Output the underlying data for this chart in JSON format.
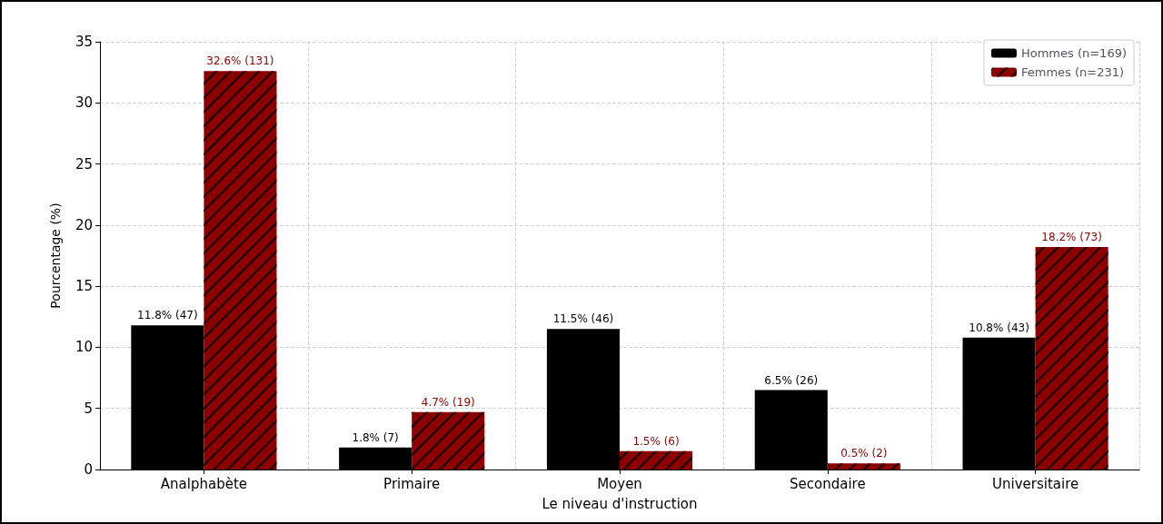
{
  "chart_data": {
    "type": "bar",
    "xlabel": "Le niveau d'instruction",
    "ylabel": "Pourcentage (%)",
    "categories": [
      "Analphabète",
      "Primaire",
      "Moyen",
      "Secondaire",
      "Universitaire"
    ],
    "series": [
      {
        "name": "Hommes (n=169)",
        "color": "#000000",
        "values": [
          11.8,
          1.8,
          11.5,
          6.5,
          10.8
        ],
        "value_labels": [
          "11.8% (47)",
          "1.8% (7)",
          "11.5% (46)",
          "6.5% (26)",
          "10.8% (43)"
        ]
      },
      {
        "name": "Femmes (n=231)",
        "color": "#8b0000",
        "values": [
          32.6,
          4.7,
          1.5,
          0.5,
          18.2
        ],
        "value_labels": [
          "32.6% (131)",
          "4.7% (19)",
          "1.5% (6)",
          "0.5% (2)",
          "18.2% (73)"
        ]
      }
    ],
    "ylim": [
      0,
      35
    ],
    "yticks": [
      0,
      5,
      10,
      15,
      20,
      25,
      30,
      35
    ],
    "grid": true,
    "legend": "top right"
  }
}
